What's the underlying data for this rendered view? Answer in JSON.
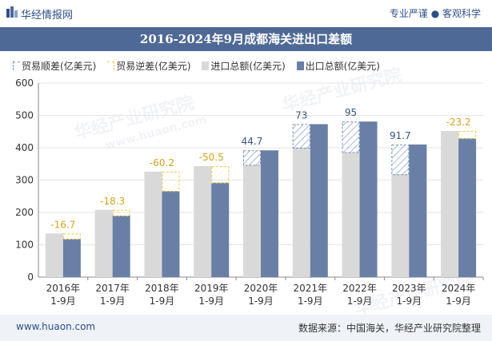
{
  "header": {
    "brand": "华经情报网",
    "slogan": "专业严谨 ● 客观科学"
  },
  "footer": {
    "site": "www.huaon.com",
    "source": "数据来源：中国海关，华经产业研究院整理"
  },
  "watermark": {
    "text": "华经产业研究院",
    "url": "www.huaon.com"
  },
  "colors": {
    "title_bg": "#4f6996",
    "import": "#d9d9d9",
    "export": "#6a7fa6",
    "surplus_stroke": "#7a93b8",
    "deficit_stroke": "#f2c84b",
    "surplus_label": "#35557f",
    "deficit_label": "#d4a21c"
  },
  "chart_data": {
    "type": "bar",
    "title": "2016-2024年9月成都海关进出口差额",
    "categories": [
      "2016年\n1-9月",
      "2017年\n1-9月",
      "2018年\n1-9月",
      "2019年\n1-9月",
      "2020年\n1-9月",
      "2021年\n1-9月",
      "2022年\n1-9月",
      "2023年\n1-9月",
      "2024年\n1-9月"
    ],
    "series": [
      {
        "name": "进口总额(亿美元)",
        "values": [
          135,
          208,
          326,
          343,
          347,
          400,
          386,
          318,
          452
        ]
      },
      {
        "name": "出口总额(亿美元)",
        "values": [
          118,
          190,
          266,
          292,
          392,
          473,
          481,
          410,
          429
        ]
      }
    ],
    "balance": {
      "surplus_name": "贸易顺差(亿美元)",
      "deficit_name": "贸易逆差(亿美元)",
      "values": [
        -16.7,
        -18.3,
        -60.2,
        -50.5,
        44.7,
        73,
        95,
        91.7,
        -23.2
      ],
      "labels": [
        "-16.7",
        "-18.3",
        "-60.2",
        "-50.5",
        "44.7",
        "73",
        "95",
        "91.7",
        "-23.2"
      ]
    },
    "ylim": [
      0,
      600
    ],
    "yticks": [
      0,
      100,
      200,
      300,
      400,
      500,
      600
    ],
    "grid": true,
    "legend_position": "top-left"
  }
}
